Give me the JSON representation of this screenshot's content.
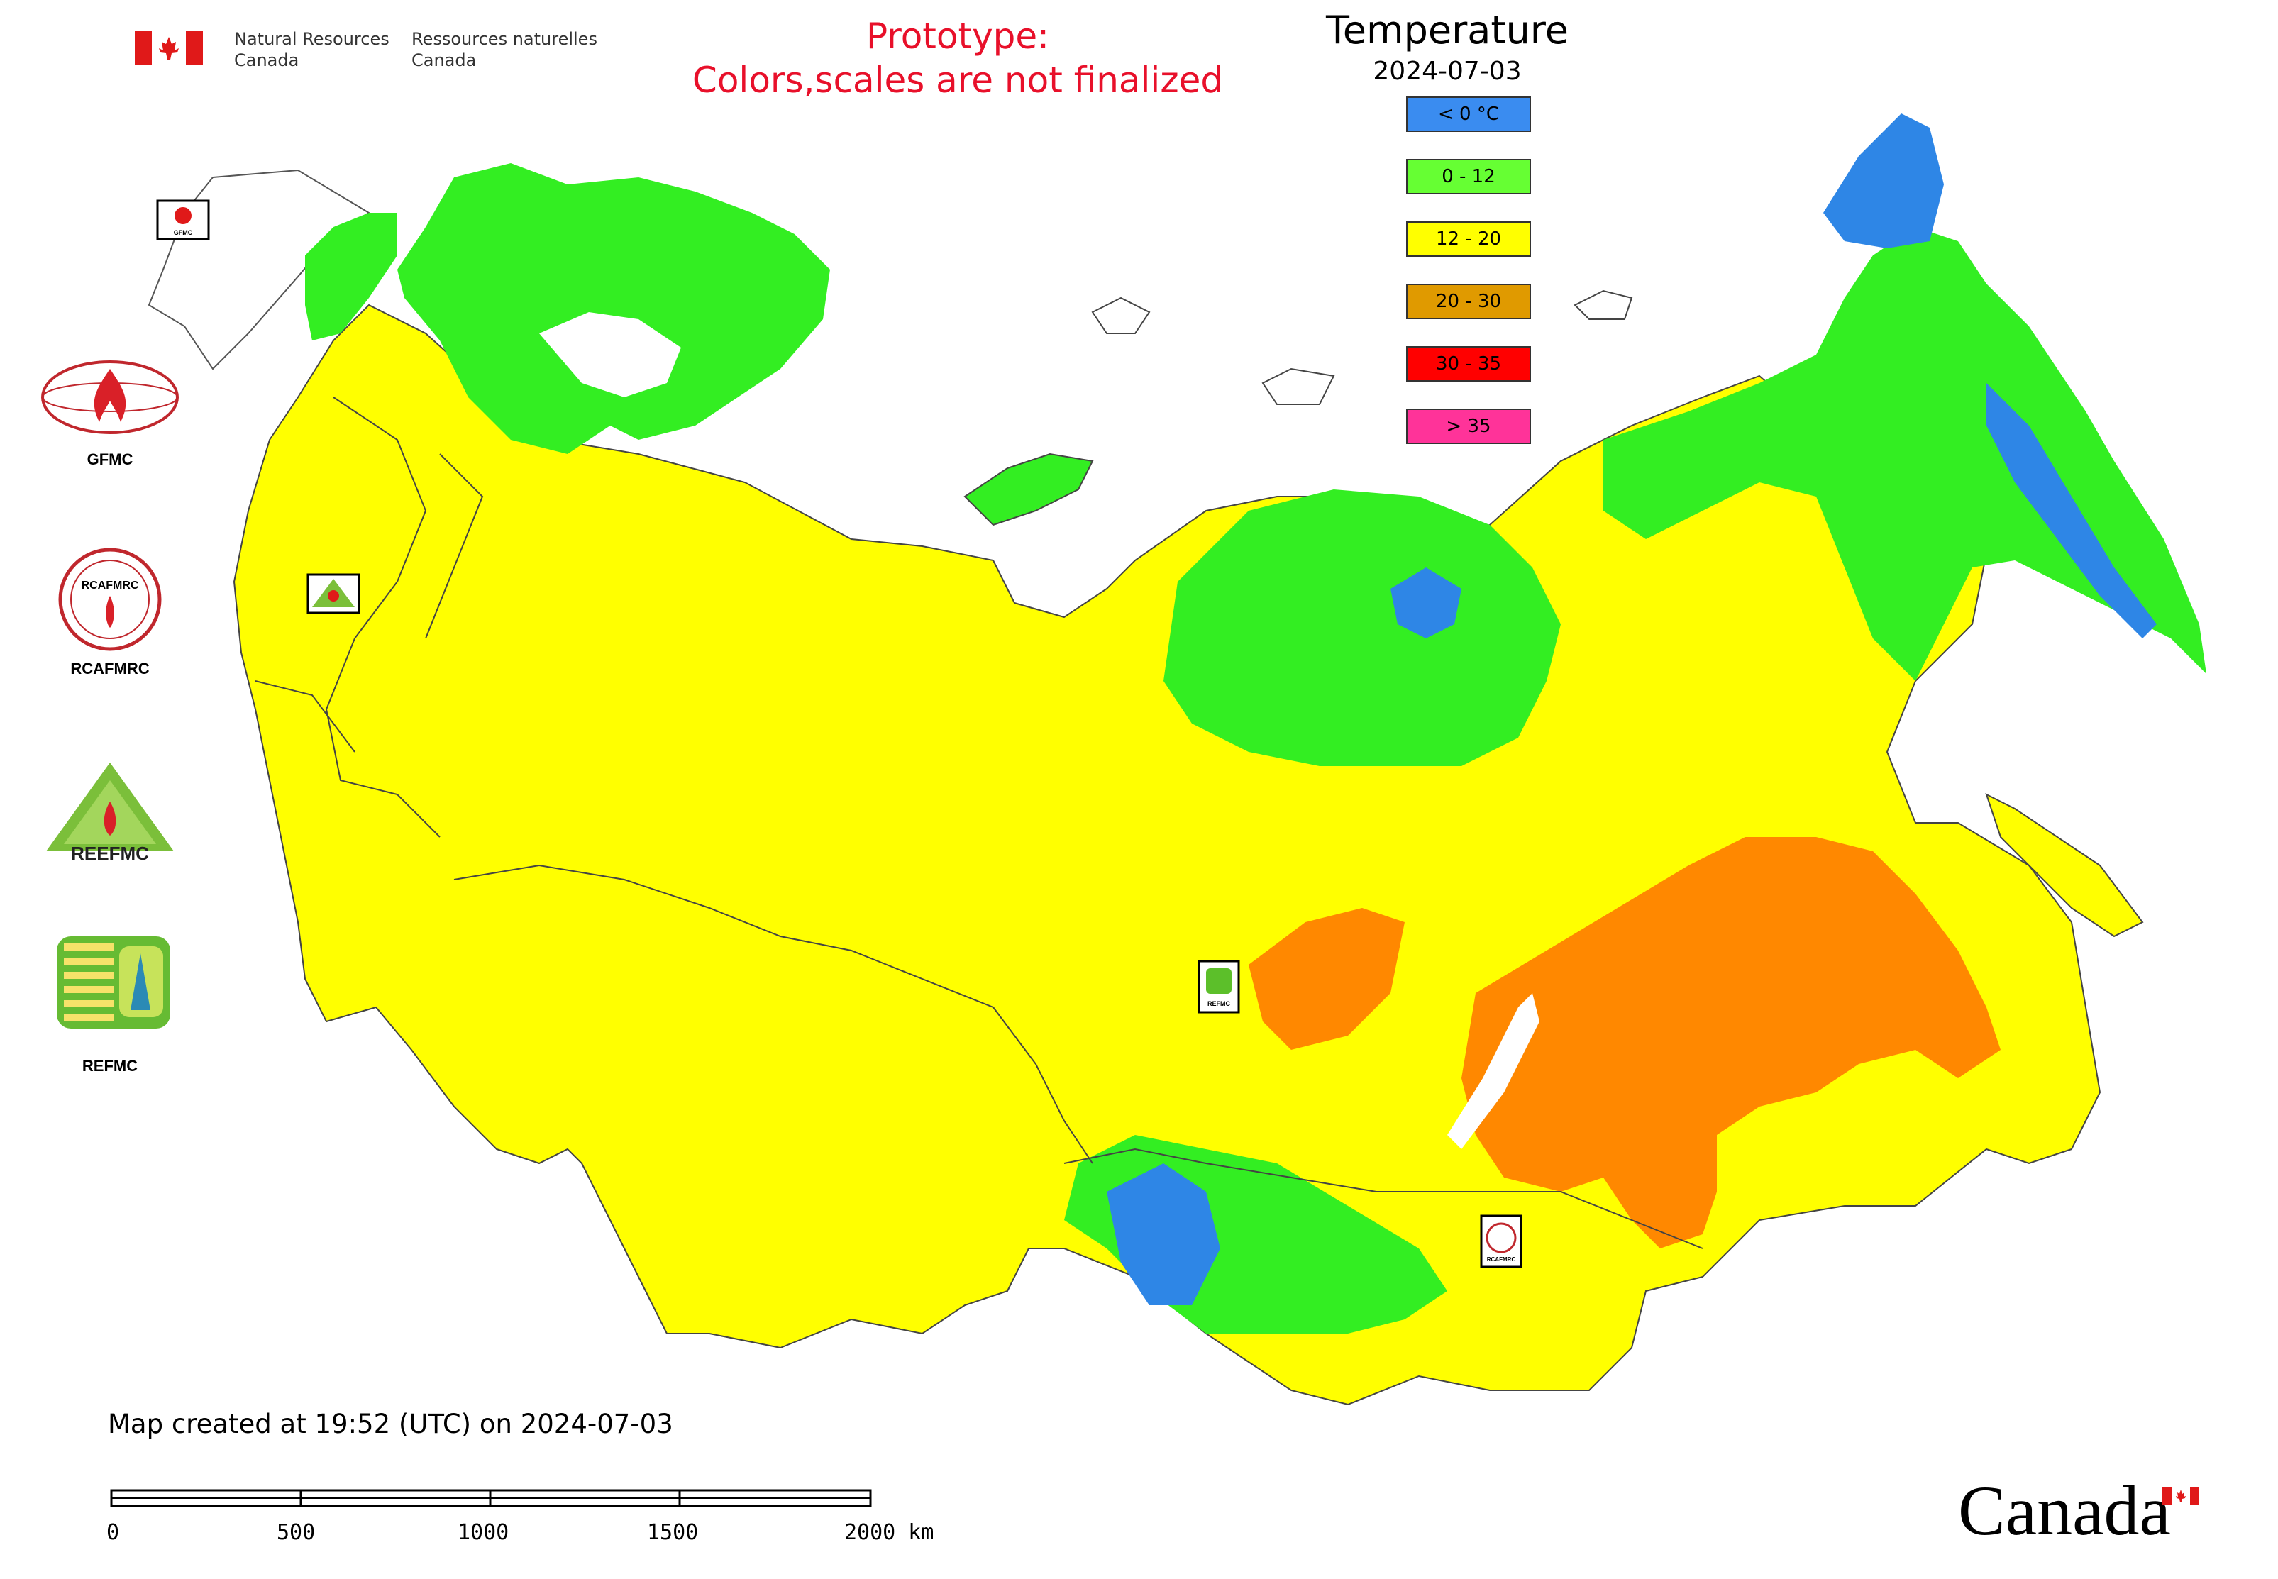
{
  "header": {
    "department_en_line1": "Natural Resources",
    "department_en_line2": "Canada",
    "department_fr_line1": "Ressources naturelles",
    "department_fr_line2": "Canada",
    "prototype_line1": "Prototype:",
    "prototype_line2": "Colors,scales are not finalized"
  },
  "legend": {
    "title": "Temperature",
    "date": "2024-07-03",
    "classes": [
      {
        "label": "< 0 °C",
        "color": "#3a8cf0"
      },
      {
        "label": "0 - 12",
        "color": "#66ff33"
      },
      {
        "label": "12 - 20",
        "color": "#ffff00"
      },
      {
        "label": "20 - 30",
        "color": "#e09a00"
      },
      {
        "label": "30 - 35",
        "color": "#ff0000"
      },
      {
        "label": "> 35",
        "color": "#ff3399"
      }
    ]
  },
  "map": {
    "colors": {
      "cold": "#2e86e6",
      "cool": "#33ee22",
      "mild": "#ffff00",
      "warm": "#ff8800",
      "hot": "#ff0000",
      "very_hot": "#ff3399",
      "border": "#444444",
      "water": "#ffffff"
    },
    "centre_markers": [
      {
        "id": "GFMC",
        "label": "GFMC"
      },
      {
        "id": "REEFMC",
        "label": "REEFMC"
      },
      {
        "id": "REFMC",
        "label": "REFMC"
      },
      {
        "id": "RCAFMRC",
        "label": "RCAFMRC"
      }
    ]
  },
  "partners": [
    {
      "label": "GFMC"
    },
    {
      "label": "RCAFMRC"
    },
    {
      "label": ""
    },
    {
      "label": "REFMC"
    }
  ],
  "partner_logo_text": {
    "rcafmrc_badge": "RCAFMRC",
    "reefmc_badge": "REEFMC"
  },
  "footer": {
    "created_note": "Map created at 19:52 (UTC) on 2024-07-03",
    "scale_ticks": [
      "0",
      "500",
      "1000",
      "1500",
      "2000 km"
    ],
    "wordmark": "Canada"
  }
}
